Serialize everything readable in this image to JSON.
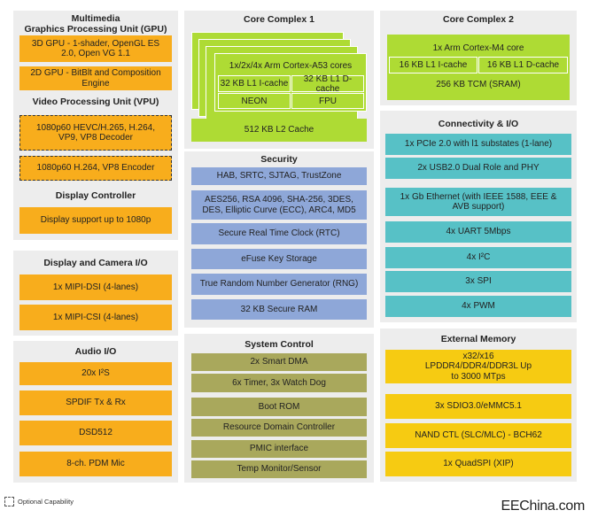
{
  "multimedia": {
    "title": "Multimedia\nGraphics Processing Unit (GPU)",
    "gpu3d": "3D GPU - 1-shader, OpenGL ES 2.0, Open VG 1.1",
    "gpu2d": "2D GPU - BitBlt and Composition Engine",
    "vpu_title": "Video Processing Unit (VPU)",
    "decoder": "1080p60 HEVC/H.265, H.264, VP9, VP8 Decoder",
    "encoder": "1080p60 H.264, VP8 Encoder",
    "display_title": "Display Controller",
    "display": "Display support up to 1080p"
  },
  "display_camera": {
    "title": "Display and Camera I/O",
    "items": [
      "1x MIPI-DSI (4-lanes)",
      "1x MIPI-CSI (4-lanes)"
    ]
  },
  "audio": {
    "title": "Audio I/O",
    "items": [
      "20x I²S",
      "SPDIF Tx & Rx",
      "DSD512",
      "8-ch. PDM Mic"
    ]
  },
  "core1": {
    "title": "Core Complex 1",
    "cores": "1x/2x/4x Arm Cortex-A53 cores",
    "icache": "32 KB L1 I-cache",
    "dcache": "32 KB L1 D-cache",
    "neon": "NEON",
    "fpu": "FPU",
    "l2": "512 KB L2 Cache"
  },
  "security": {
    "title": "Security",
    "items": [
      "HAB, SRTC, SJTAG, TrustZone",
      "AES256, RSA 4096, SHA-256, 3DES, DES, Elliptic Curve (ECC), ARC4, MD5",
      "Secure Real Time Clock (RTC)",
      "eFuse Key Storage",
      "True Random Number Generator (RNG)",
      "32 KB Secure RAM"
    ]
  },
  "system": {
    "title": "System Control",
    "items": [
      "2x Smart DMA",
      "6x Timer, 3x Watch Dog",
      "Boot ROM",
      "Resource Domain Controller",
      "PMIC interface",
      "Temp Monitor/Sensor"
    ]
  },
  "core2": {
    "title": "Core Complex 2",
    "core": "1x Arm Cortex-M4 core",
    "icache": "16 KB L1 I-cache",
    "dcache": "16 KB L1 D-cache",
    "tcm": "256 KB TCM (SRAM)"
  },
  "connectivity": {
    "title": "Connectivity & I/O",
    "items": [
      "1x PCIe 2.0 with l1 substates (1-lane)",
      "2x USB2.0 Dual Role and PHY",
      "1x Gb Ethernet (with IEEE 1588, EEE & AVB support)",
      "4x UART 5Mbps",
      "4x I²C",
      "3x SPI",
      "4x PWM"
    ]
  },
  "memory": {
    "title": "External Memory",
    "items": [
      "x32/x16 LPDDR4/DDR4/DDR3L Up to 3000 MTps",
      "3x SDIO3.0/eMMC5.1",
      "NAND CTL (SLC/MLC) - BCH62",
      "1x QuadSPI (XIP)"
    ]
  },
  "legend": "Optional Capability",
  "watermark": "EEChina.com"
}
